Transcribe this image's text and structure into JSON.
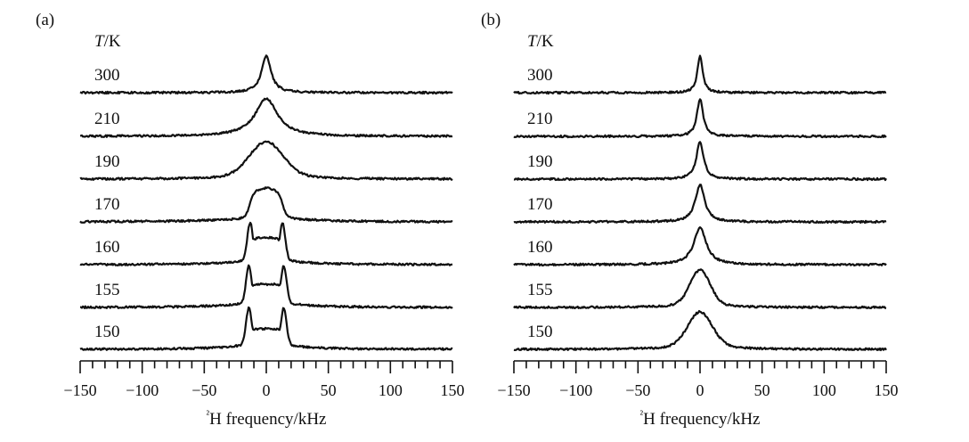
{
  "chart_data": [
    {
      "type": "line",
      "panel_label": "(a)",
      "series_header": "T/K",
      "xlabel": "²H frequency/kHz",
      "xlim": [
        -150,
        150
      ],
      "xticks": [
        -150,
        -100,
        -50,
        0,
        50,
        100,
        150
      ],
      "y_ticks_shown": false,
      "grid": false,
      "series": [
        {
          "name": "300",
          "lineshape": "lorentzian",
          "fwhm_khz": 9,
          "center_khz": 0,
          "height": 1.0
        },
        {
          "name": "210",
          "lineshape": "lorentzian",
          "fwhm_khz": 22,
          "center_khz": 0,
          "height": 1.0
        },
        {
          "name": "190",
          "lineshape": "broad-single",
          "fwhm_khz": 30,
          "center_khz": 0,
          "height": 1.0
        },
        {
          "name": "170",
          "lineshape": "flat-top",
          "horn_khz": 12,
          "plateau_height": 1.0
        },
        {
          "name": "160",
          "lineshape": "pake",
          "horn_khz": 13,
          "horn_height": 1.0,
          "center_height": 0.72
        },
        {
          "name": "155",
          "lineshape": "pake",
          "horn_khz": 14,
          "horn_height": 1.0,
          "center_height": 0.62
        },
        {
          "name": "150",
          "lineshape": "pake",
          "horn_khz": 14,
          "horn_height": 1.0,
          "center_height": 0.55
        }
      ]
    },
    {
      "type": "line",
      "panel_label": "(b)",
      "series_header": "T/K",
      "xlabel": "²H frequency/kHz",
      "xlim": [
        -150,
        150
      ],
      "xticks": [
        -150,
        -100,
        -50,
        0,
        50,
        100,
        150
      ],
      "y_ticks_shown": false,
      "grid": false,
      "series": [
        {
          "name": "300",
          "lineshape": "lorentzian",
          "fwhm_khz": 5,
          "center_khz": 0,
          "height": 1.0
        },
        {
          "name": "210",
          "lineshape": "lorentzian",
          "fwhm_khz": 6,
          "center_khz": 0,
          "height": 1.0
        },
        {
          "name": "190",
          "lineshape": "lorentzian",
          "fwhm_khz": 7,
          "center_khz": 0,
          "height": 1.0
        },
        {
          "name": "170",
          "lineshape": "lorentzian",
          "fwhm_khz": 9,
          "center_khz": 0,
          "height": 1.0
        },
        {
          "name": "160",
          "lineshape": "lorentzian",
          "fwhm_khz": 12,
          "center_khz": 0,
          "height": 1.0
        },
        {
          "name": "155",
          "lineshape": "broad-single",
          "fwhm_khz": 18,
          "center_khz": 0,
          "height": 1.0
        },
        {
          "name": "150",
          "lineshape": "broad-single",
          "fwhm_khz": 22,
          "center_khz": 0,
          "height": 1.0
        }
      ]
    }
  ]
}
